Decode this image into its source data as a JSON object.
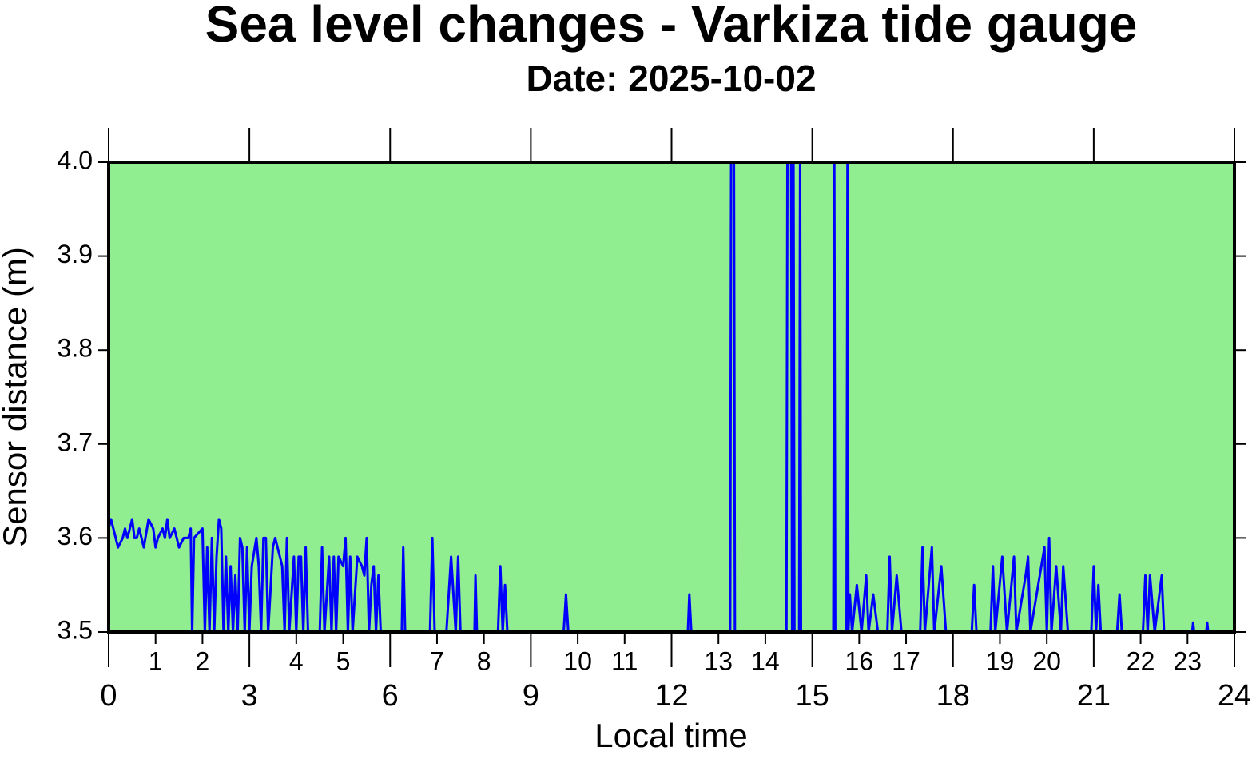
{
  "chart_data": {
    "type": "line",
    "title": "Sea level changes - Varkiza tide gauge",
    "subtitle": "Date: 2025-10-02",
    "x_label": "Local time",
    "y_label": "Sensor distance (m)",
    "background": "#90ee90",
    "xlim": [
      0,
      24
    ],
    "xticks": [
      0,
      3,
      6,
      9,
      12,
      15,
      18,
      21,
      24
    ],
    "xticks_minor": [
      1,
      2,
      4,
      5,
      7,
      8,
      10,
      11,
      13,
      14,
      16,
      17,
      19,
      20,
      22,
      23
    ],
    "ylim": [
      3.5,
      4.0
    ],
    "yticks": [
      3.5,
      3.6,
      3.7,
      3.8,
      3.9,
      {
        "value": 4.0,
        "label": "4.0"
      }
    ],
    "x": [
      0,
      0.05,
      0.1,
      0.15,
      0.2,
      0.3,
      0.35,
      0.4,
      0.5,
      0.55,
      0.6,
      0.65,
      0.7,
      0.75,
      0.85,
      0.95,
      1.0,
      1.05,
      1.15,
      1.2,
      1.25,
      1.3,
      1.4,
      1.5,
      1.6,
      1.7,
      1.75,
      1.78,
      1.82,
      2.0,
      2.05,
      2.1,
      2.15,
      2.2,
      2.25,
      2.3,
      2.35,
      2.4,
      2.45,
      2.5,
      2.55,
      2.6,
      2.65,
      2.7,
      2.75,
      2.8,
      2.85,
      2.9,
      2.95,
      3.0,
      3.05,
      3.15,
      3.2,
      3.25,
      3.3,
      3.35,
      3.4,
      3.5,
      3.55,
      3.65,
      3.7,
      3.75,
      3.8,
      3.85,
      3.95,
      4.0,
      4.05,
      4.1,
      4.15,
      4.2,
      4.25,
      4.5,
      4.55,
      4.6,
      4.7,
      4.75,
      4.8,
      4.85,
      4.9,
      5.0,
      5.05,
      5.1,
      5.15,
      5.2,
      5.3,
      5.4,
      5.45,
      5.5,
      5.55,
      5.6,
      5.65,
      5.7,
      5.75,
      5.8,
      6.25,
      6.28,
      6.32,
      6.85,
      6.9,
      6.95,
      7.2,
      7.3,
      7.4,
      7.45,
      7.5,
      7.8,
      7.82,
      7.85,
      8.3,
      8.35,
      8.4,
      8.45,
      8.5,
      9.7,
      9.75,
      9.8,
      12.35,
      12.38,
      12.42,
      13.25,
      13.27,
      13.33,
      13.35,
      14.45,
      14.47,
      14.55,
      14.57,
      14.6,
      14.62,
      14.72,
      14.74,
      14.76,
      15.45,
      15.47,
      15.49,
      15.73,
      15.75,
      15.77,
      15.8,
      15.85,
      15.95,
      16.05,
      16.15,
      16.2,
      16.3,
      16.4,
      16.6,
      16.65,
      16.7,
      16.8,
      16.9,
      17.3,
      17.35,
      17.4,
      17.55,
      17.6,
      17.75,
      17.85,
      18.4,
      18.45,
      18.5,
      18.8,
      18.85,
      18.9,
      19.05,
      19.15,
      19.3,
      19.35,
      19.55,
      19.6,
      19.65,
      19.95,
      20.0,
      20.05,
      20.1,
      20.2,
      20.3,
      20.35,
      20.45,
      20.95,
      21.0,
      21.05,
      21.1,
      21.15,
      21.5,
      21.55,
      21.6,
      22.05,
      22.1,
      22.15,
      22.2,
      22.3,
      22.45,
      22.5,
      23.1,
      23.12,
      23.14,
      23.4,
      23.42,
      23.44
    ],
    "series": [
      {
        "name": "Sea level",
        "color": "#0000ff",
        "values": [
          3.61,
          3.62,
          3.61,
          3.6,
          3.59,
          3.6,
          3.61,
          3.6,
          3.62,
          3.6,
          3.6,
          3.61,
          3.6,
          3.59,
          3.62,
          3.61,
          3.59,
          3.6,
          3.61,
          3.6,
          3.62,
          3.6,
          3.61,
          3.59,
          3.6,
          3.6,
          3.61,
          3.5,
          3.6,
          3.61,
          3.5,
          3.59,
          3.5,
          3.6,
          3.5,
          3.58,
          3.62,
          3.61,
          3.5,
          3.58,
          3.5,
          3.57,
          3.5,
          3.56,
          3.5,
          3.6,
          3.59,
          3.5,
          3.59,
          3.5,
          3.57,
          3.6,
          3.57,
          3.5,
          3.6,
          3.6,
          3.5,
          3.59,
          3.6,
          3.58,
          3.57,
          3.5,
          3.6,
          3.5,
          3.58,
          3.5,
          3.58,
          3.58,
          3.5,
          3.59,
          3.5,
          3.5,
          3.59,
          3.5,
          3.58,
          3.5,
          3.58,
          3.5,
          3.58,
          3.57,
          3.6,
          3.5,
          3.58,
          3.5,
          3.58,
          3.57,
          3.56,
          3.6,
          3.5,
          3.55,
          3.57,
          3.5,
          3.56,
          3.5,
          3.5,
          3.59,
          3.5,
          3.5,
          3.6,
          3.5,
          3.5,
          3.58,
          3.5,
          3.58,
          3.5,
          3.5,
          3.56,
          3.5,
          3.5,
          3.57,
          3.5,
          3.55,
          3.5,
          3.5,
          3.54,
          3.5,
          3.5,
          3.54,
          3.5,
          3.5,
          4.0,
          4.0,
          3.5,
          3.5,
          4.0,
          4.0,
          3.5,
          4.0,
          3.5,
          3.5,
          4.0,
          3.5,
          3.5,
          4.0,
          3.5,
          3.5,
          4.0,
          3.5,
          3.54,
          3.5,
          3.55,
          3.5,
          3.56,
          3.5,
          3.54,
          3.5,
          3.5,
          3.58,
          3.5,
          3.56,
          3.5,
          3.5,
          3.59,
          3.5,
          3.59,
          3.5,
          3.57,
          3.5,
          3.5,
          3.55,
          3.5,
          3.5,
          3.57,
          3.5,
          3.58,
          3.5,
          3.58,
          3.5,
          3.56,
          3.58,
          3.5,
          3.59,
          3.5,
          3.6,
          3.5,
          3.57,
          3.5,
          3.57,
          3.5,
          3.5,
          3.57,
          3.5,
          3.55,
          3.5,
          3.5,
          3.54,
          3.5,
          3.5,
          3.56,
          3.5,
          3.56,
          3.5,
          3.56,
          3.5,
          3.5,
          3.51,
          3.5,
          3.5,
          3.51,
          3.5
        ]
      }
    ]
  }
}
